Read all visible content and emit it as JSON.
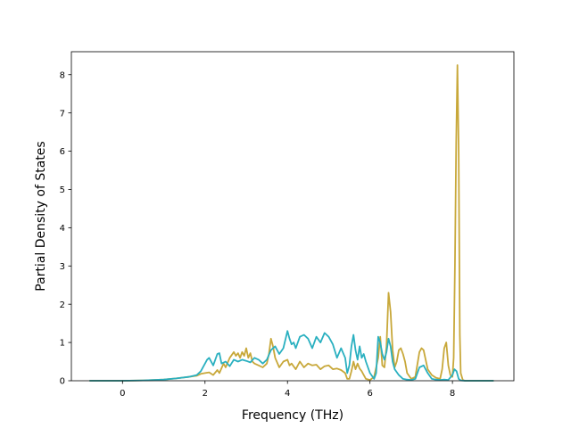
{
  "chart_data": {
    "type": "line",
    "title": "",
    "xlabel": "Frequency (THz)",
    "ylabel": "Partial Density of States",
    "xlim": [
      -1.24,
      9.49
    ],
    "ylim": [
      0,
      8.6
    ],
    "xticks": [
      0,
      2,
      4,
      6,
      8
    ],
    "yticks": [
      0,
      1,
      2,
      3,
      4,
      5,
      6,
      7,
      8
    ],
    "grid": false,
    "legend": "none",
    "series": [
      {
        "color": "#c8a83a",
        "x": [
          -0.8,
          0.0,
          0.5,
          1.0,
          1.3,
          1.6,
          1.8,
          1.9,
          2.0,
          2.1,
          2.2,
          2.3,
          2.35,
          2.45,
          2.5,
          2.6,
          2.7,
          2.75,
          2.8,
          2.85,
          2.9,
          2.95,
          3.0,
          3.05,
          3.1,
          3.15,
          3.2,
          3.3,
          3.4,
          3.5,
          3.55,
          3.6,
          3.65,
          3.7,
          3.8,
          3.9,
          4.0,
          4.05,
          4.1,
          4.2,
          4.3,
          4.4,
          4.5,
          4.6,
          4.7,
          4.8,
          4.9,
          5.0,
          5.1,
          5.2,
          5.3,
          5.4,
          5.45,
          5.5,
          5.55,
          5.6,
          5.65,
          5.7,
          5.75,
          5.8,
          5.85,
          5.9,
          6.0,
          6.1,
          6.2,
          6.25,
          6.3,
          6.35,
          6.4,
          6.45,
          6.5,
          6.55,
          6.6,
          6.65,
          6.7,
          6.75,
          6.8,
          6.85,
          6.9,
          7.0,
          7.1,
          7.2,
          7.25,
          7.3,
          7.35,
          7.4,
          7.5,
          7.6,
          7.7,
          7.75,
          7.8,
          7.85,
          7.9,
          7.95,
          8.0,
          8.03,
          8.06,
          8.09,
          8.12,
          8.15,
          8.18,
          8.2,
          8.25,
          8.3,
          8.5,
          9.0
        ],
        "values": [
          0,
          0,
          0.01,
          0.03,
          0.06,
          0.1,
          0.13,
          0.18,
          0.2,
          0.22,
          0.15,
          0.28,
          0.2,
          0.45,
          0.35,
          0.6,
          0.75,
          0.65,
          0.72,
          0.6,
          0.75,
          0.65,
          0.85,
          0.6,
          0.72,
          0.5,
          0.45,
          0.4,
          0.35,
          0.45,
          0.7,
          1.1,
          0.9,
          0.6,
          0.35,
          0.5,
          0.55,
          0.4,
          0.45,
          0.3,
          0.5,
          0.35,
          0.45,
          0.4,
          0.42,
          0.3,
          0.38,
          0.4,
          0.3,
          0.32,
          0.28,
          0.2,
          0.05,
          0.05,
          0.25,
          0.5,
          0.3,
          0.45,
          0.32,
          0.25,
          0.15,
          0.05,
          0.02,
          0.1,
          0.6,
          1.15,
          0.4,
          0.35,
          0.9,
          2.3,
          1.8,
          0.8,
          0.35,
          0.5,
          0.8,
          0.85,
          0.7,
          0.5,
          0.2,
          0.05,
          0.1,
          0.75,
          0.85,
          0.8,
          0.55,
          0.3,
          0.15,
          0.08,
          0.05,
          0.3,
          0.85,
          1.0,
          0.4,
          0.15,
          0.1,
          0.6,
          3.0,
          6.2,
          8.25,
          6.0,
          1.2,
          0.2,
          0.02,
          0,
          0,
          0
        ]
      },
      {
        "color": "#2ab0c0",
        "x": [
          -0.8,
          0.0,
          0.5,
          1.0,
          1.3,
          1.6,
          1.8,
          1.9,
          2.0,
          2.05,
          2.1,
          2.2,
          2.3,
          2.35,
          2.4,
          2.5,
          2.6,
          2.7,
          2.8,
          2.9,
          3.0,
          3.1,
          3.2,
          3.3,
          3.4,
          3.5,
          3.6,
          3.7,
          3.8,
          3.9,
          4.0,
          4.05,
          4.1,
          4.15,
          4.2,
          4.3,
          4.4,
          4.5,
          4.6,
          4.7,
          4.8,
          4.9,
          4.95,
          5.0,
          5.1,
          5.2,
          5.3,
          5.4,
          5.45,
          5.5,
          5.55,
          5.6,
          5.65,
          5.7,
          5.75,
          5.8,
          5.85,
          5.9,
          6.0,
          6.1,
          6.15,
          6.2,
          6.25,
          6.3,
          6.35,
          6.4,
          6.45,
          6.5,
          6.55,
          6.6,
          6.7,
          6.8,
          6.9,
          7.0,
          7.1,
          7.2,
          7.3,
          7.4,
          7.5,
          7.6,
          7.7,
          7.8,
          7.9,
          8.0,
          8.05,
          8.1,
          8.15,
          8.2,
          8.3,
          8.5,
          9.0
        ],
        "values": [
          0,
          0,
          0.01,
          0.03,
          0.06,
          0.1,
          0.15,
          0.25,
          0.45,
          0.55,
          0.6,
          0.4,
          0.7,
          0.72,
          0.45,
          0.5,
          0.38,
          0.55,
          0.5,
          0.55,
          0.52,
          0.48,
          0.6,
          0.55,
          0.45,
          0.55,
          0.8,
          0.9,
          0.7,
          0.85,
          1.3,
          1.1,
          0.95,
          1.0,
          0.85,
          1.15,
          1.2,
          1.1,
          0.85,
          1.15,
          1.0,
          1.25,
          1.2,
          1.15,
          0.95,
          0.6,
          0.85,
          0.6,
          0.2,
          0.4,
          0.9,
          1.2,
          0.8,
          0.55,
          0.9,
          0.6,
          0.7,
          0.5,
          0.2,
          0.05,
          0.2,
          1.15,
          1.0,
          0.7,
          0.55,
          0.75,
          1.1,
          0.9,
          0.5,
          0.3,
          0.15,
          0.05,
          0.03,
          0.02,
          0.05,
          0.35,
          0.4,
          0.2,
          0.05,
          0.03,
          0.02,
          0.03,
          0.02,
          0.15,
          0.3,
          0.25,
          0.05,
          0.01,
          0,
          0,
          0
        ]
      }
    ]
  }
}
